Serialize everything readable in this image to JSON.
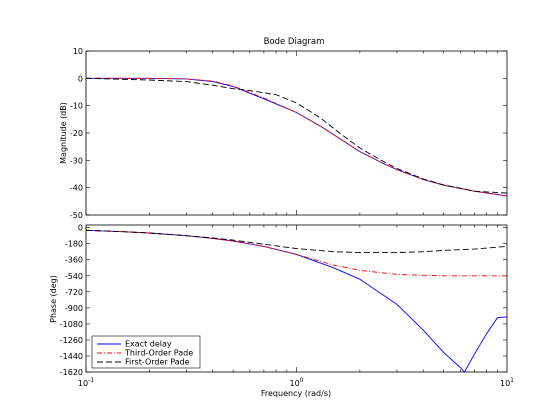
{
  "chart_data": [
    {
      "type": "line",
      "title": "Bode Diagram",
      "xlabel": "",
      "ylabel": "Magnitude (dB)",
      "xscale": "log",
      "xlim": [
        0.1,
        10
      ],
      "ylim": [
        -50,
        10
      ],
      "yticks": [
        10,
        0,
        -10,
        -20,
        -30,
        -40,
        -50
      ],
      "ytick_labels": [
        "10",
        "0",
        "-10",
        "-20",
        "-30",
        "-40",
        "-50"
      ],
      "grid": false,
      "series": [
        {
          "name": "Exact delay",
          "color": "#0000ff",
          "dash": "solid",
          "x": [
            0.1,
            0.2,
            0.3,
            0.4,
            0.5,
            0.7,
            1.0,
            1.3,
            1.6,
            2.0,
            2.5,
            3.0,
            4.0,
            5.0,
            7.0,
            10.0
          ],
          "y": [
            0,
            0,
            -0.2,
            -1.2,
            -3.0,
            -7.5,
            -12.5,
            -17.5,
            -22.0,
            -26.8,
            -30.6,
            -33.4,
            -37.0,
            -39.1,
            -41.3,
            -43.0
          ]
        },
        {
          "name": "Third-Order Pade",
          "color": "#ff0000",
          "dash": "dashdot",
          "x": [
            0.1,
            0.2,
            0.3,
            0.4,
            0.5,
            0.7,
            1.0,
            1.3,
            1.6,
            2.0,
            2.5,
            3.0,
            4.0,
            5.0,
            7.0,
            10.0
          ],
          "y": [
            0,
            0,
            -0.2,
            -1.0,
            -2.8,
            -7.2,
            -12.5,
            -17.5,
            -22.0,
            -26.8,
            -30.6,
            -33.4,
            -37.0,
            -39.1,
            -41.3,
            -43.0
          ]
        },
        {
          "name": "First-Order Pade",
          "color": "#000000",
          "dash": "dashed",
          "x": [
            0.1,
            0.2,
            0.3,
            0.4,
            0.5,
            0.6,
            0.8,
            1.0,
            1.3,
            1.6,
            2.0,
            2.5,
            3.0,
            4.0,
            5.0,
            7.0,
            10.0
          ],
          "y": [
            0,
            -0.6,
            -1.2,
            -2.5,
            -3.8,
            -4.5,
            -6.0,
            -9.0,
            -14.5,
            -20.0,
            -25.5,
            -29.8,
            -33.0,
            -36.8,
            -39.0,
            -41.3,
            -42.0
          ]
        }
      ]
    },
    {
      "type": "line",
      "title": "",
      "xlabel": "Frequency  (rad/s)",
      "ylabel": "Phase (deg)",
      "xscale": "log",
      "xlim": [
        0.1,
        10
      ],
      "xticks": [
        0.1,
        1,
        10
      ],
      "xtick_base": "10",
      "xtick_exponents": [
        "-1",
        "0",
        "1"
      ],
      "ylim": [
        -1620,
        30
      ],
      "yticks": [
        0,
        -180,
        -360,
        -540,
        -720,
        -900,
        -1080,
        -1260,
        -1440,
        -1620
      ],
      "ytick_labels": [
        "0",
        "-180",
        "-360",
        "-540",
        "-720",
        "-900",
        "-1080",
        "-1260",
        "-1440",
        "-1620"
      ],
      "grid": false,
      "legend": "bottom-left",
      "series": [
        {
          "name": "Exact delay",
          "color": "#0000ff",
          "dash": "solid",
          "x": [
            0.1,
            0.15,
            0.2,
            0.3,
            0.4,
            0.5,
            0.7,
            1.0,
            1.5,
            2.0,
            3.0,
            4.0,
            5.0,
            6.0,
            6.28,
            7.0,
            8.0,
            9.0,
            10.0
          ],
          "y": [
            -30,
            -45,
            -60,
            -90,
            -120,
            -150,
            -210,
            -300,
            -450,
            -580,
            -860,
            -1150,
            -1400,
            -1570,
            -1620,
            -1420,
            -1190,
            -1010,
            -1000
          ]
        },
        {
          "name": "Third-Order Pade",
          "color": "#ff0000",
          "dash": "dashdot",
          "x": [
            0.1,
            0.15,
            0.2,
            0.3,
            0.4,
            0.5,
            0.7,
            1.0,
            1.5,
            2.0,
            3.0,
            4.0,
            5.0,
            7.0,
            10.0
          ],
          "y": [
            -30,
            -45,
            -60,
            -90,
            -120,
            -150,
            -210,
            -300,
            -420,
            -480,
            -525,
            -535,
            -540,
            -540,
            -540
          ]
        },
        {
          "name": "First-Order Pade",
          "color": "#000000",
          "dash": "dashed",
          "x": [
            0.1,
            0.15,
            0.2,
            0.3,
            0.4,
            0.5,
            0.7,
            1.0,
            1.5,
            2.0,
            3.0,
            4.0,
            5.0,
            7.0,
            10.0
          ],
          "y": [
            -30,
            -45,
            -60,
            -90,
            -115,
            -140,
            -185,
            -235,
            -270,
            -280,
            -280,
            -270,
            -255,
            -240,
            -210
          ]
        }
      ]
    }
  ]
}
